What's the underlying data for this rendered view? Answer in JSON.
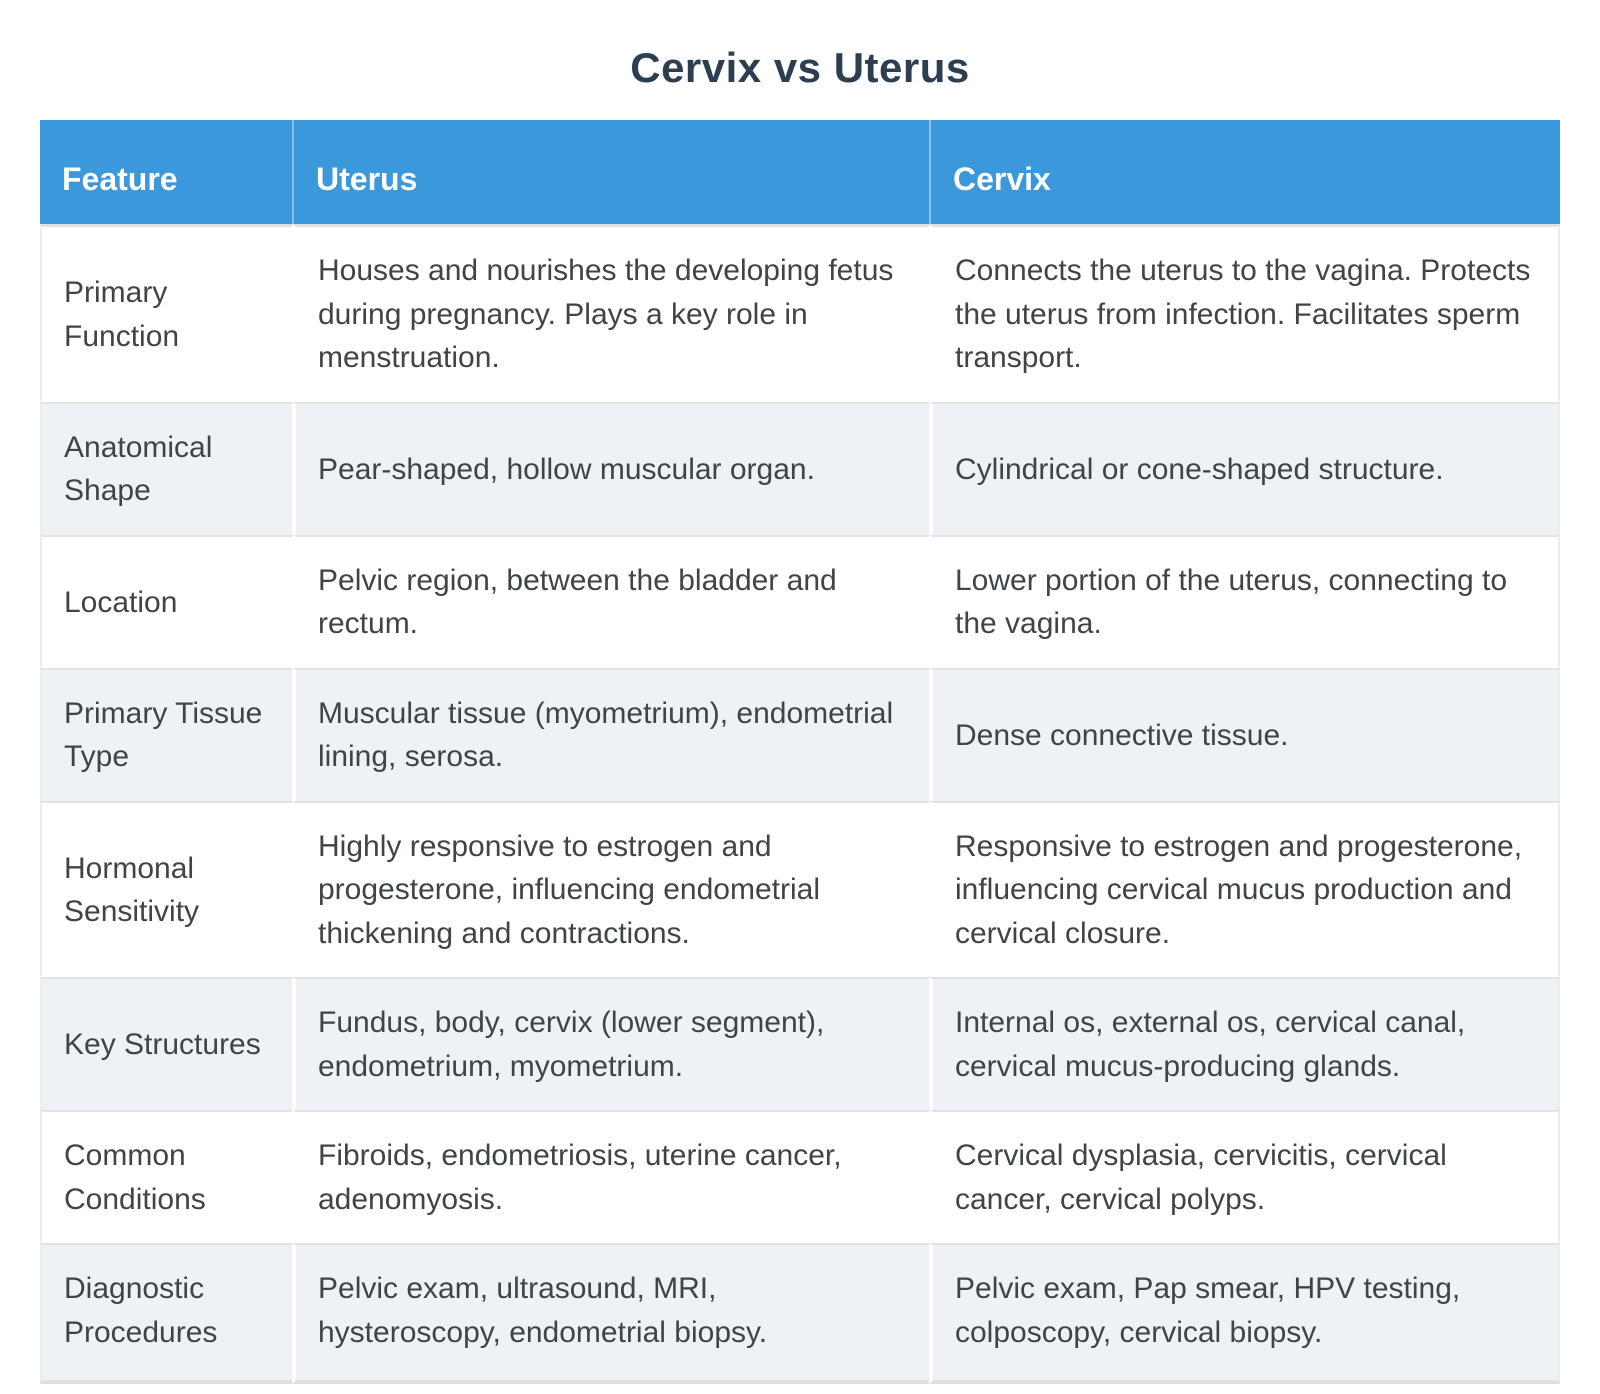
{
  "title": "Cervix vs Uterus",
  "colors": {
    "header_bg": "#3a98db",
    "header_text": "#ffffff",
    "title_text": "#2c3e50",
    "body_text": "#3f4449",
    "row_alt_bg": "#eef2f7",
    "row_border": "#e3e3e3"
  },
  "chart_data": {
    "type": "table",
    "title": "Cervix vs Uterus",
    "columns": [
      "Feature",
      "Uterus",
      "Cervix"
    ],
    "rows": [
      {
        "feature": "Primary Function",
        "uterus": "Houses and nourishes the developing fetus during pregnancy. Plays a key role in menstruation.",
        "cervix": "Connects the uterus to the vagina. Protects the uterus from infection. Facilitates sperm transport."
      },
      {
        "feature": "Anatomical Shape",
        "uterus": "Pear-shaped, hollow muscular organ.",
        "cervix": "Cylindrical or cone-shaped structure."
      },
      {
        "feature": "Location",
        "uterus": "Pelvic region, between the bladder and rectum.",
        "cervix": "Lower portion of the uterus, connecting to the vagina."
      },
      {
        "feature": "Primary Tissue Type",
        "uterus": "Muscular tissue (myometrium), endometrial lining, serosa.",
        "cervix": "Dense connective tissue."
      },
      {
        "feature": "Hormonal Sensitivity",
        "uterus": "Highly responsive to estrogen and progesterone, influencing endometrial thickening and contractions.",
        "cervix": "Responsive to estrogen and progesterone, influencing cervical mucus production and cervical closure."
      },
      {
        "feature": "Key Structures",
        "uterus": "Fundus, body, cervix (lower segment), endometrium, myometrium.",
        "cervix": "Internal os, external os, cervical canal, cervical mucus-producing glands."
      },
      {
        "feature": "Common Conditions",
        "uterus": "Fibroids, endometriosis, uterine cancer, adenomyosis.",
        "cervix": "Cervical dysplasia, cervicitis, cervical cancer, cervical polyps."
      },
      {
        "feature": "Diagnostic Procedures",
        "uterus": "Pelvic exam, ultrasound, MRI, hysteroscopy, endometrial biopsy.",
        "cervix": "Pelvic exam, Pap smear, HPV testing, colposcopy, cervical biopsy."
      }
    ]
  }
}
